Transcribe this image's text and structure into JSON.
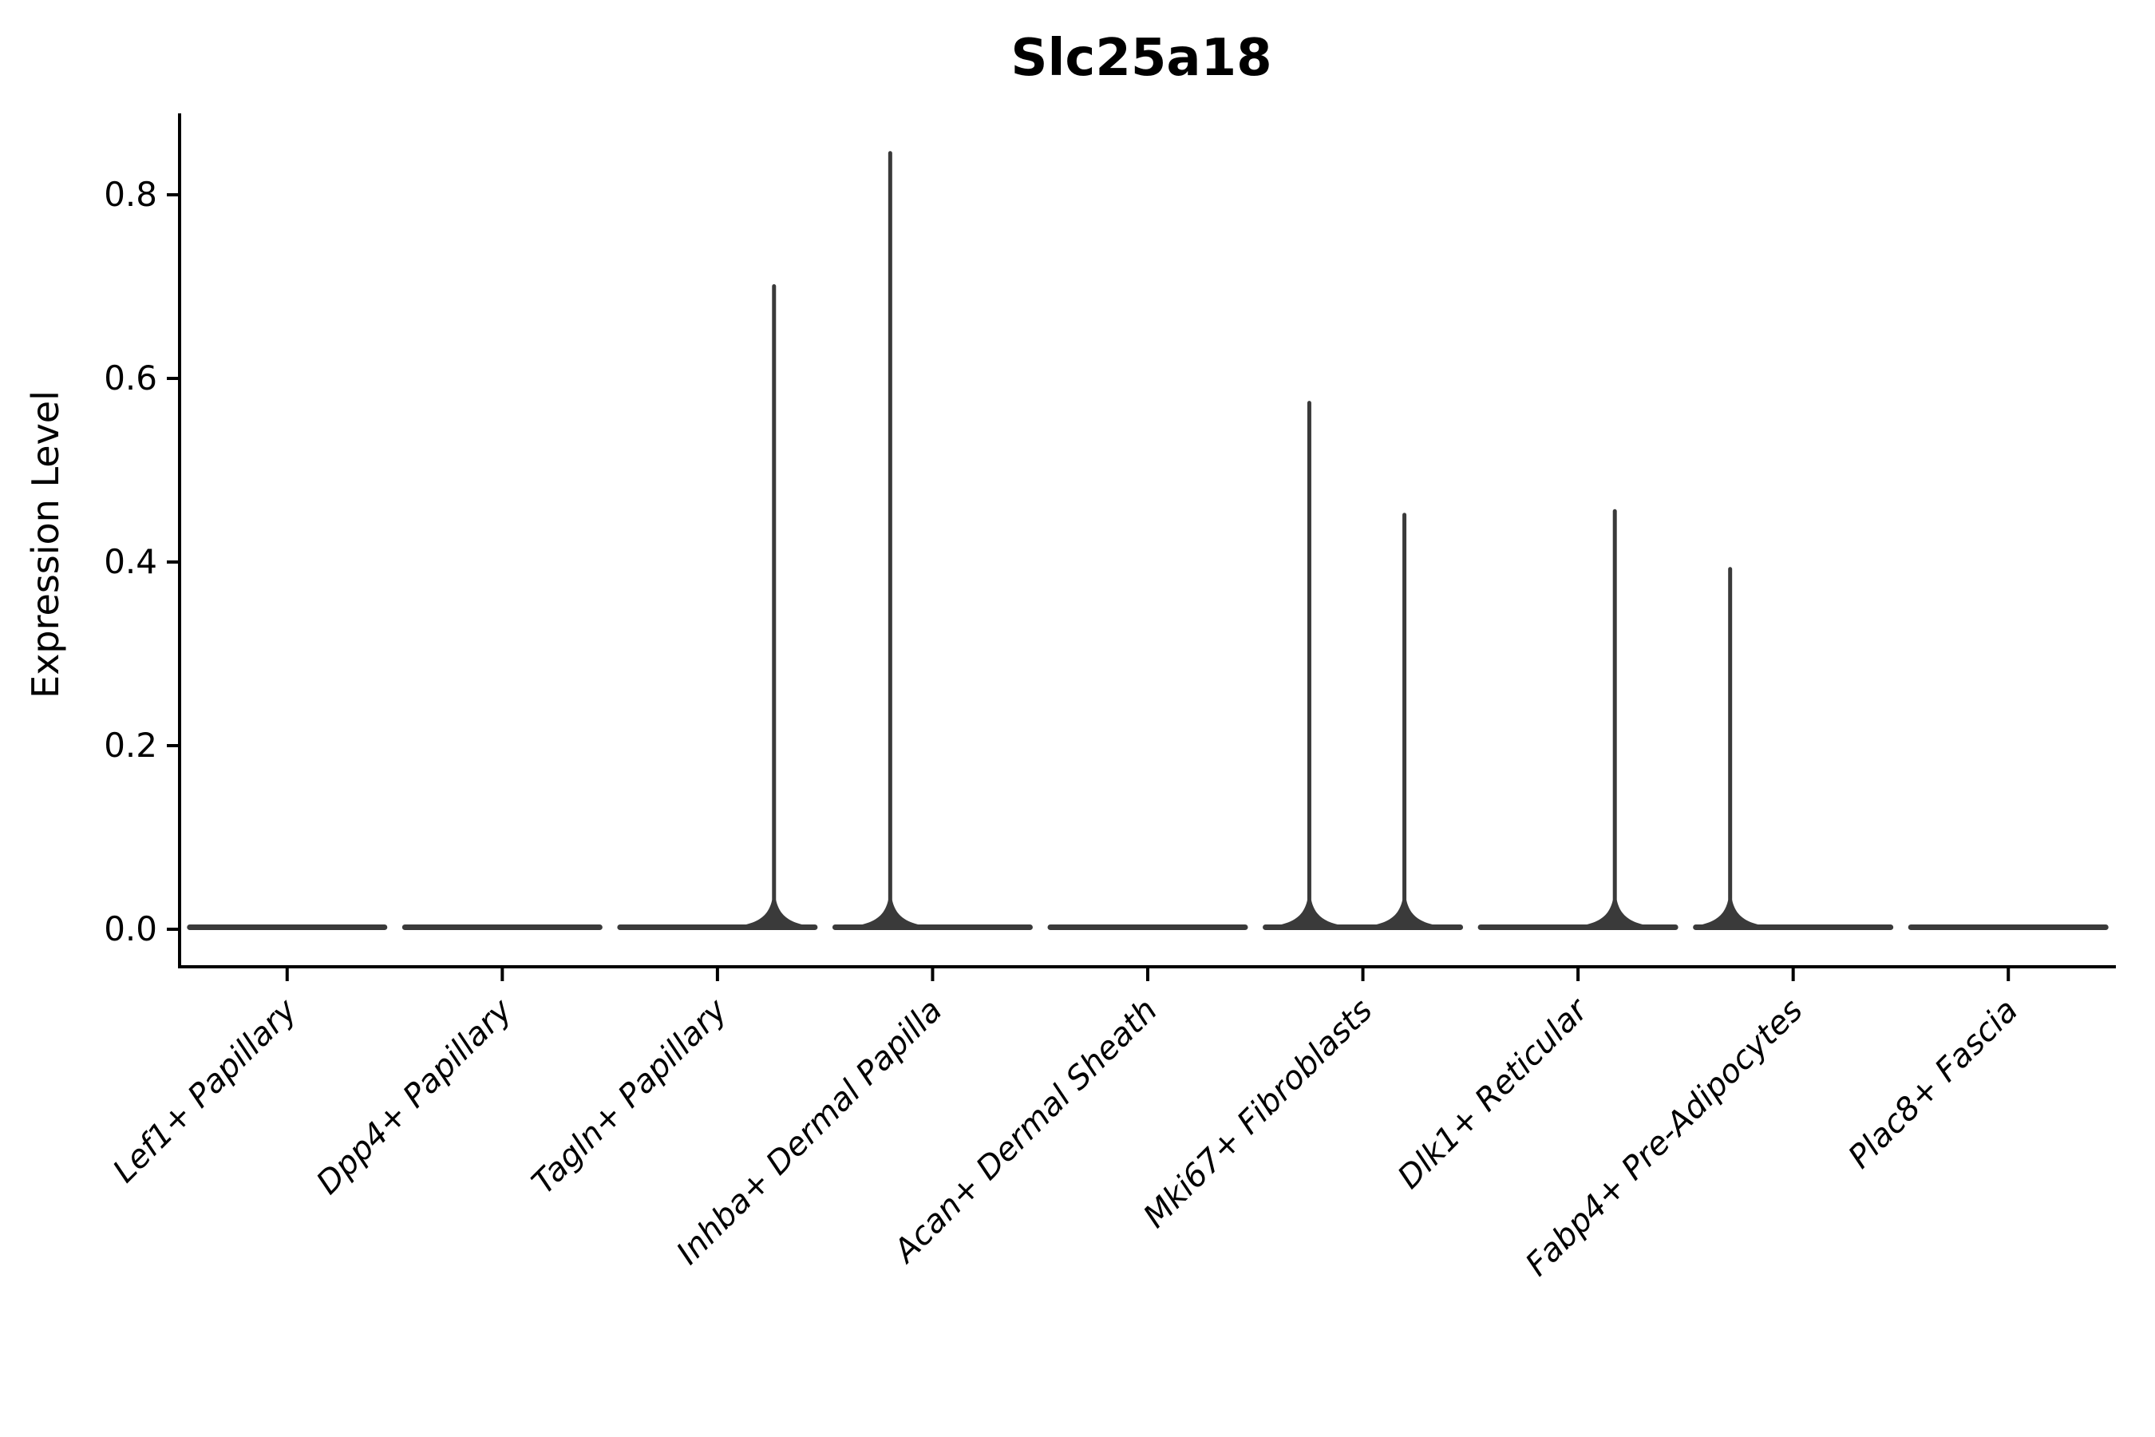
{
  "figure": {
    "background": "#ffffff"
  },
  "chart_data": {
    "type": "violin",
    "title": "Slc25a18",
    "xlabel": "",
    "ylabel": "Expression Level",
    "categories": [
      "Lef1+ Papillary",
      "Dpp4+ Papillary",
      "Tagln+ Papillary",
      "Inhba+ Dermal Papilla",
      "Acan+ Dermal Sheath",
      "Mki67+ Fibroblasts",
      "Dlk1+ Reticular",
      "Fabp4+ Pre-Adipocytes",
      "Plac8+ Fascia"
    ],
    "violins": [
      {
        "category": "Lef1+ Papillary",
        "body": "flat-at-zero",
        "max_expression": 0.0,
        "spikes": []
      },
      {
        "category": "Dpp4+ Papillary",
        "body": "flat-at-zero",
        "max_expression": 0.0,
        "spikes": []
      },
      {
        "category": "Tagln+ Papillary",
        "body": "flat-at-zero",
        "max_expression": 0.703,
        "spikes": [
          {
            "max_value": 0.703,
            "x_offset_frac": 0.263
          }
        ]
      },
      {
        "category": "Inhba+ Dermal Papilla",
        "body": "flat-at-zero",
        "max_expression": 0.848,
        "spikes": [
          {
            "max_value": 0.848,
            "x_offset_frac": -0.197
          }
        ]
      },
      {
        "category": "Acan+ Dermal Sheath",
        "body": "flat-at-zero",
        "max_expression": 0.0,
        "spikes": []
      },
      {
        "category": "Mki67+ Fibroblasts",
        "body": "flat-at-zero",
        "max_expression": 0.576,
        "spikes": [
          {
            "max_value": 0.576,
            "x_offset_frac": -0.249
          },
          {
            "max_value": 0.454,
            "x_offset_frac": 0.193
          }
        ]
      },
      {
        "category": "Dlk1+ Reticular",
        "body": "flat-at-zero",
        "max_expression": 0.458,
        "spikes": [
          {
            "max_value": 0.458,
            "x_offset_frac": 0.171
          }
        ]
      },
      {
        "category": "Fabp4+ Pre-Adipocytes",
        "body": "flat-at-zero",
        "max_expression": 0.395,
        "spikes": [
          {
            "max_value": 0.395,
            "x_offset_frac": -0.293
          }
        ]
      },
      {
        "category": "Plac8+ Fascia",
        "body": "flat-at-zero",
        "max_expression": 0.0,
        "spikes": []
      }
    ],
    "yticks": [
      0.0,
      0.2,
      0.4,
      0.6,
      0.8
    ],
    "ytick_labels": [
      "0.0",
      "0.2",
      "0.4",
      "0.6",
      "0.8"
    ],
    "ylim": [
      -0.041,
      0.889
    ],
    "grid": false,
    "legend": "none",
    "spines": [
      "left",
      "bottom"
    ],
    "xtick_label_style": "italic",
    "xtick_label_rotation_deg": 45,
    "colors": {
      "violin": "#3a3a3a",
      "axis": "#000000",
      "text": "#000000",
      "background": "#ffffff"
    }
  }
}
